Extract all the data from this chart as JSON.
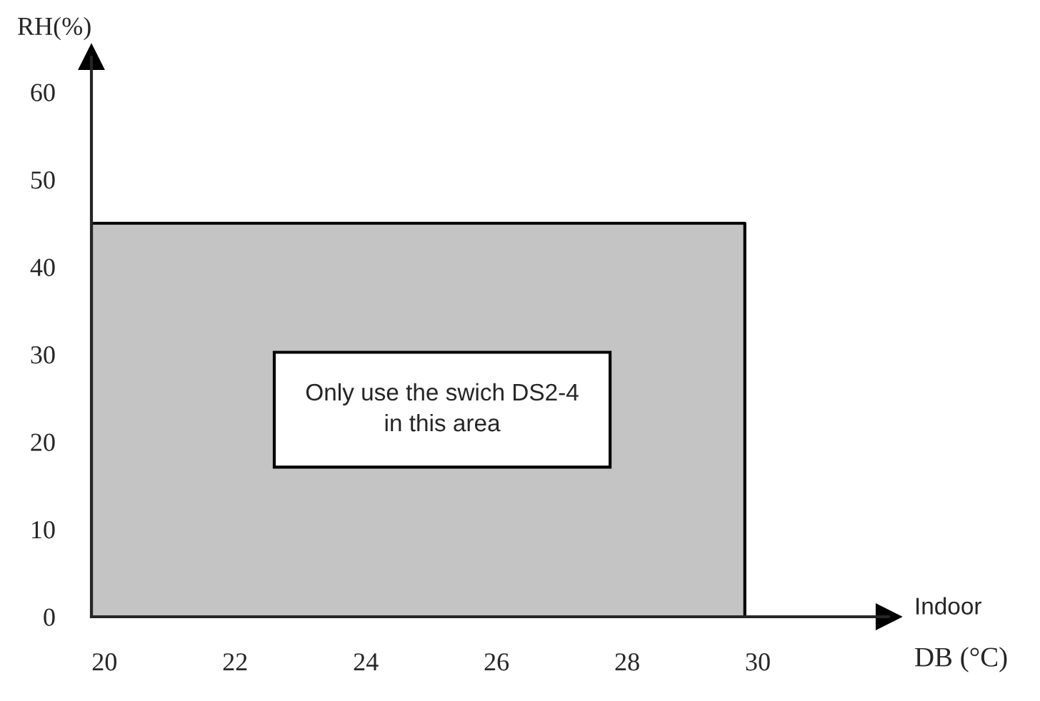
{
  "chart_data": {
    "type": "area",
    "x": [
      19.8,
      29.8
    ],
    "series": [
      {
        "color": "#c4c4c4",
        "values": [
          45,
          45
        ]
      }
    ],
    "xlim": [
      19.8,
      32
    ],
    "ylim": [
      0,
      64
    ],
    "xticks": [
      20,
      22,
      24,
      26,
      28,
      30
    ],
    "yticks": [
      0,
      10,
      20,
      30,
      40,
      50,
      60
    ],
    "xlabel": "Indoor\nDB (°C)",
    "ylabel": "RH(%)",
    "annotations": [
      "Only use the swich DS2-4\nin this area"
    ],
    "grid": false
  }
}
